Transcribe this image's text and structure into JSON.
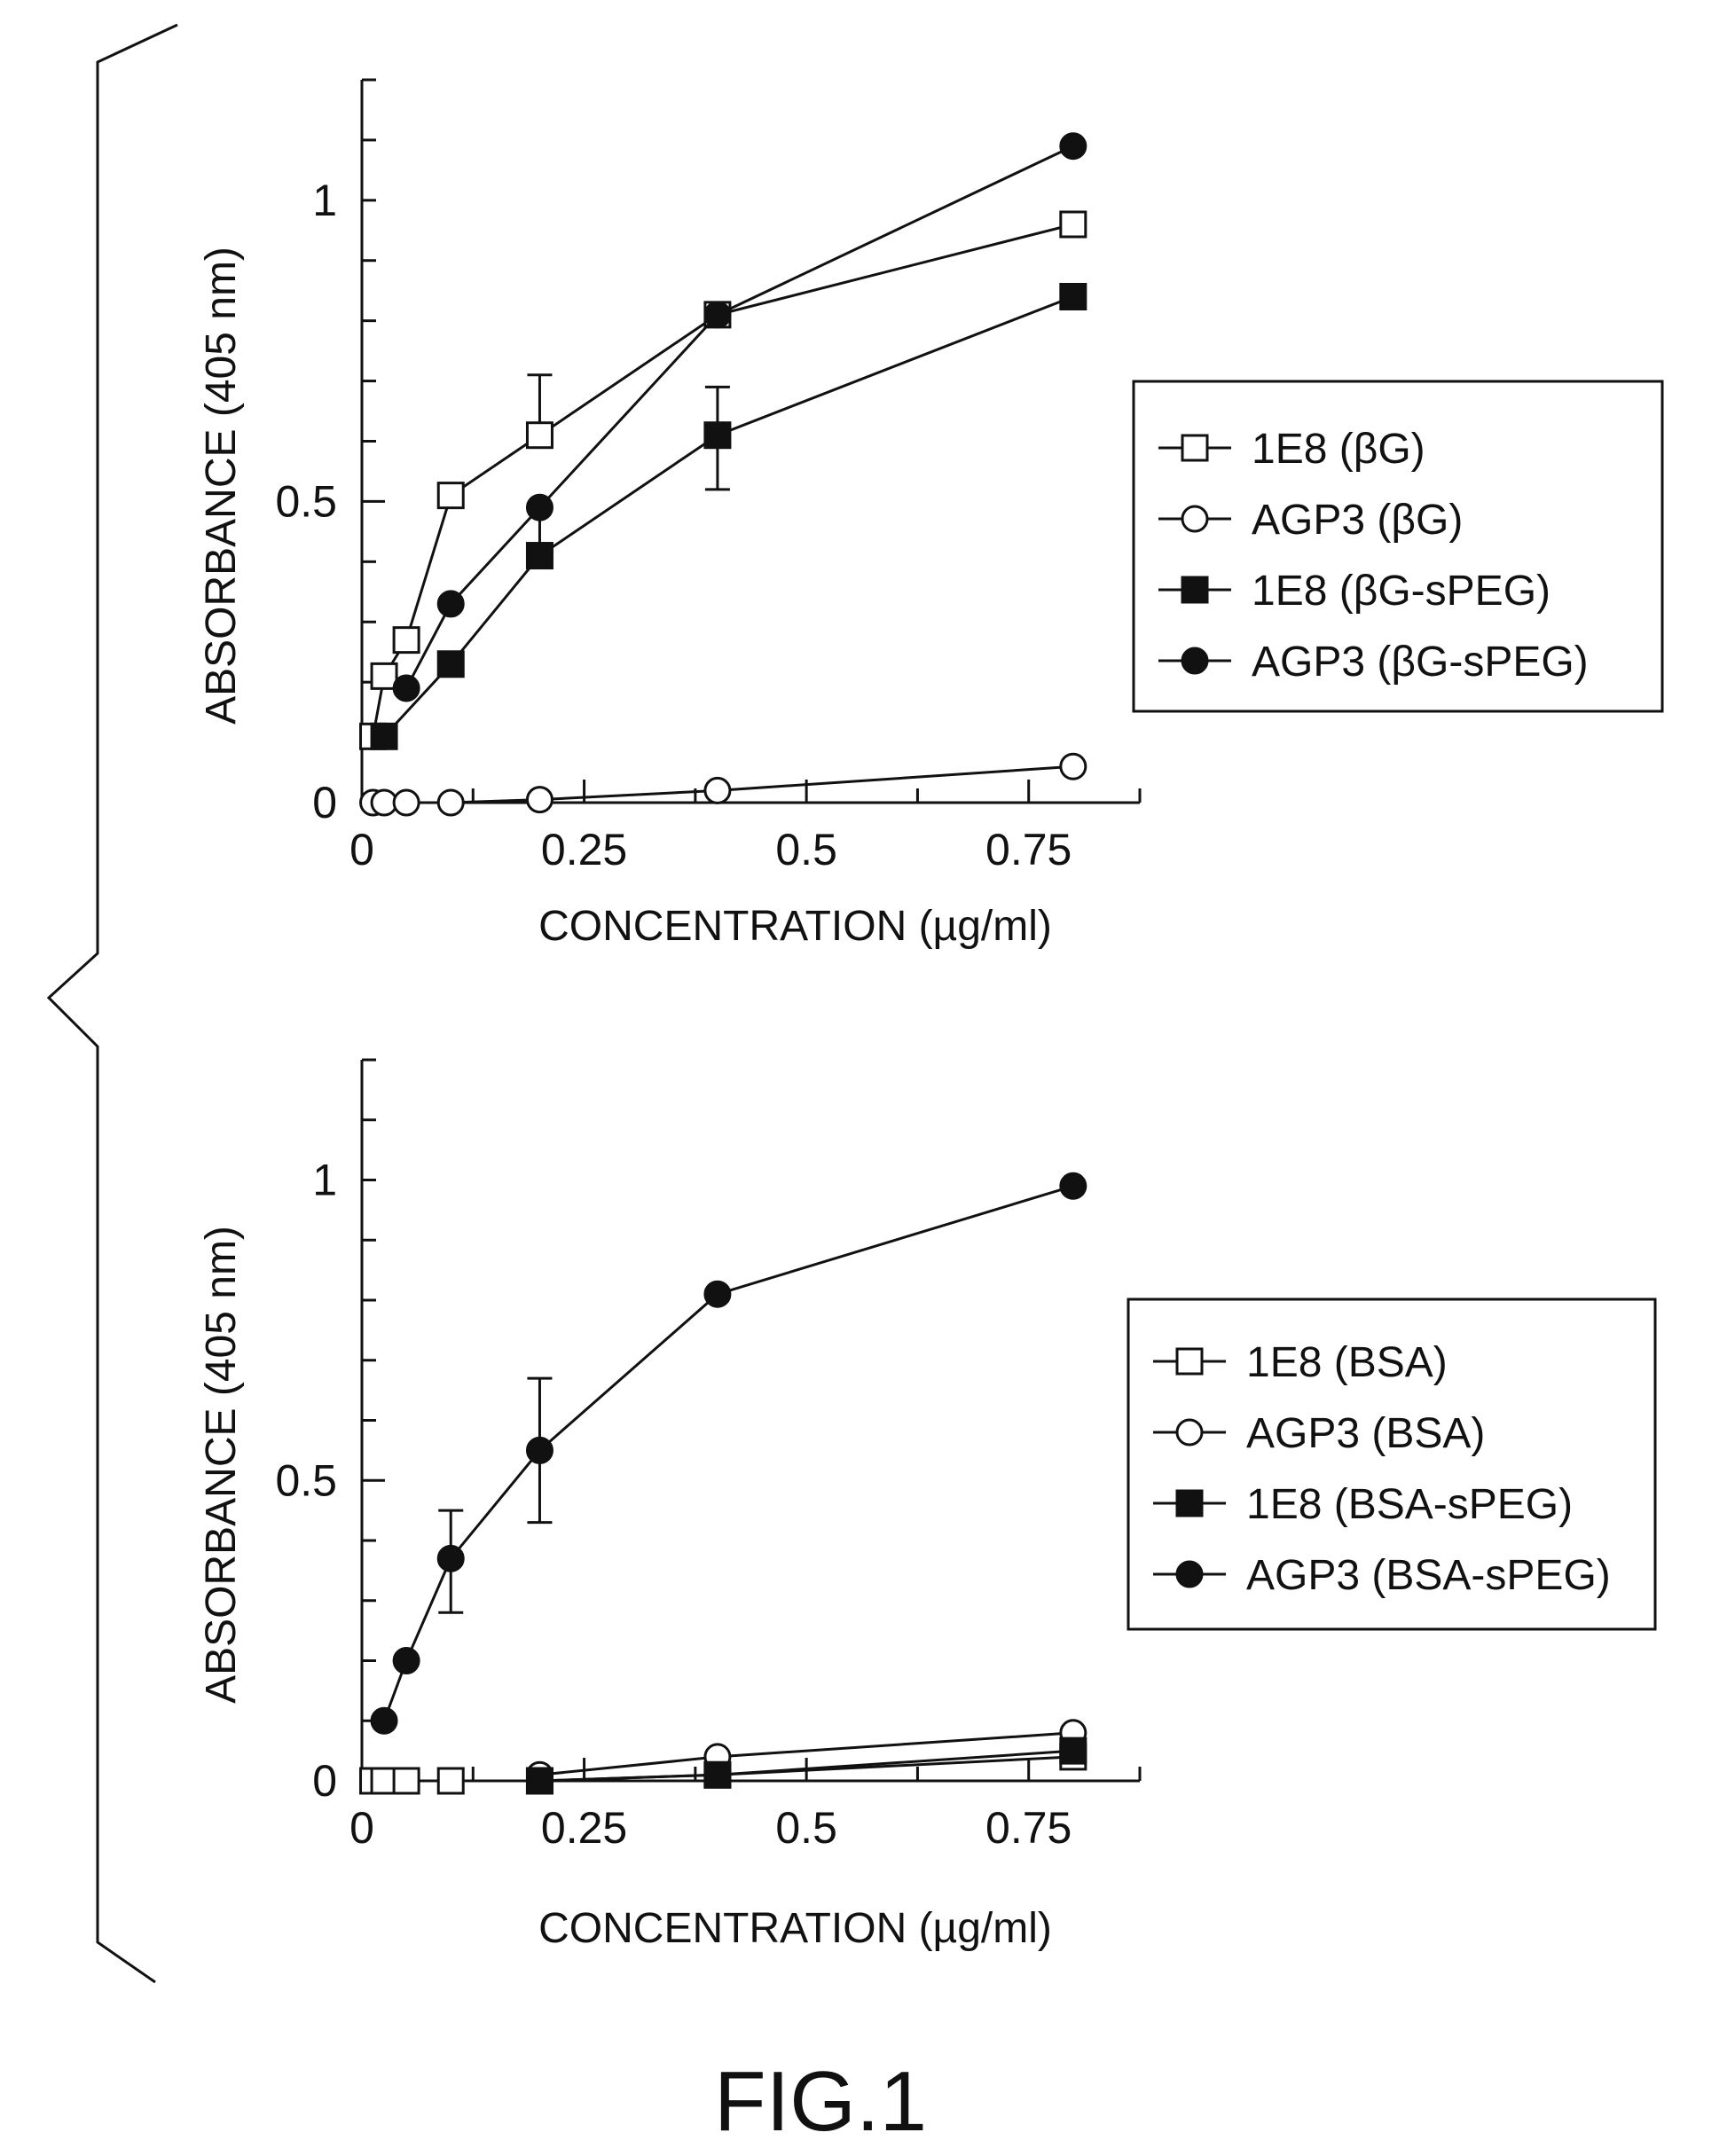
{
  "figure_label": "FIG.1",
  "chart_data": [
    {
      "type": "line",
      "xlabel": "CONCENTRATION (µg/ml)",
      "ylabel": "ABSORBANCE (405 nm)",
      "xlim": [
        0,
        0.875
      ],
      "ylim": [
        0,
        1.2
      ],
      "x_ticks": [
        0,
        0.25,
        0.5,
        0.75
      ],
      "x_tick_labels": [
        "0",
        "0.25",
        "0.5",
        "0.75"
      ],
      "y_ticks": [
        0,
        0.5,
        1
      ],
      "y_tick_labels": [
        "0",
        "0.5",
        "1"
      ],
      "legend_position": "right",
      "series": [
        {
          "name": "1E8 (βG)",
          "marker": "square-open",
          "x": [
            0.0125,
            0.025,
            0.05,
            0.1,
            0.2,
            0.4,
            0.8
          ],
          "y": [
            0.11,
            0.21,
            0.27,
            0.51,
            0.61,
            0.81,
            0.96
          ],
          "errors": [
            {
              "x": 0.2,
              "high": 0.71
            }
          ]
        },
        {
          "name": "AGP3 (βG)",
          "marker": "circle-open",
          "x": [
            0.0125,
            0.025,
            0.05,
            0.1,
            0.2,
            0.4,
            0.8
          ],
          "y": [
            0.0,
            0.0,
            0.0,
            0.0,
            0.005,
            0.02,
            0.06
          ],
          "errors": []
        },
        {
          "name": "1E8 (βG-sPEG)",
          "marker": "square-filled",
          "x": [
            0.025,
            0.1,
            0.2,
            0.4,
            0.8
          ],
          "y": [
            0.11,
            0.23,
            0.41,
            0.61,
            0.84
          ],
          "errors": [
            {
              "x": 0.4,
              "low": 0.52,
              "high": 0.69
            }
          ]
        },
        {
          "name": "AGP3 (βG-sPEG)",
          "marker": "circle-filled",
          "x": [
            0.05,
            0.1,
            0.2,
            0.4,
            0.8
          ],
          "y": [
            0.19,
            0.33,
            0.49,
            0.81,
            1.09
          ],
          "errors": [
            {
              "x": 0.2,
              "low": 0.39
            }
          ]
        }
      ]
    },
    {
      "type": "line",
      "xlabel": "CONCENTRATION (µg/ml)",
      "ylabel": "ABSORBANCE (405 nm)",
      "xlim": [
        0,
        0.875
      ],
      "ylim": [
        0,
        1.2
      ],
      "x_ticks": [
        0,
        0.25,
        0.5,
        0.75
      ],
      "x_tick_labels": [
        "0",
        "0.25",
        "0.5",
        "0.75"
      ],
      "y_ticks": [
        0,
        0.5,
        1
      ],
      "y_tick_labels": [
        "0",
        "0.5",
        "1"
      ],
      "legend_position": "right",
      "series": [
        {
          "name": "1E8 (BSA)",
          "marker": "square-open",
          "x": [
            0.0125,
            0.025,
            0.05,
            0.1,
            0.2,
            0.4,
            0.8
          ],
          "y": [
            0.0,
            0.0,
            0.0,
            0.0,
            0.0,
            0.01,
            0.04
          ],
          "errors": []
        },
        {
          "name": "AGP3 (BSA)",
          "marker": "circle-open",
          "x": [
            0.2,
            0.4,
            0.8
          ],
          "y": [
            0.01,
            0.04,
            0.08
          ],
          "errors": []
        },
        {
          "name": "1E8 (BSA-sPEG)",
          "marker": "square-filled",
          "x": [
            0.2,
            0.4,
            0.8
          ],
          "y": [
            0.0,
            0.01,
            0.05
          ],
          "errors": []
        },
        {
          "name": "AGP3 (BSA-sPEG)",
          "marker": "circle-filled",
          "x": [
            0.025,
            0.05,
            0.1,
            0.2,
            0.4,
            0.8
          ],
          "y": [
            0.1,
            0.2,
            0.37,
            0.55,
            0.81,
            0.99
          ],
          "errors": [
            {
              "x": 0.1,
              "low": 0.28,
              "high": 0.45
            },
            {
              "x": 0.2,
              "low": 0.43,
              "high": 0.67
            }
          ]
        }
      ]
    }
  ]
}
